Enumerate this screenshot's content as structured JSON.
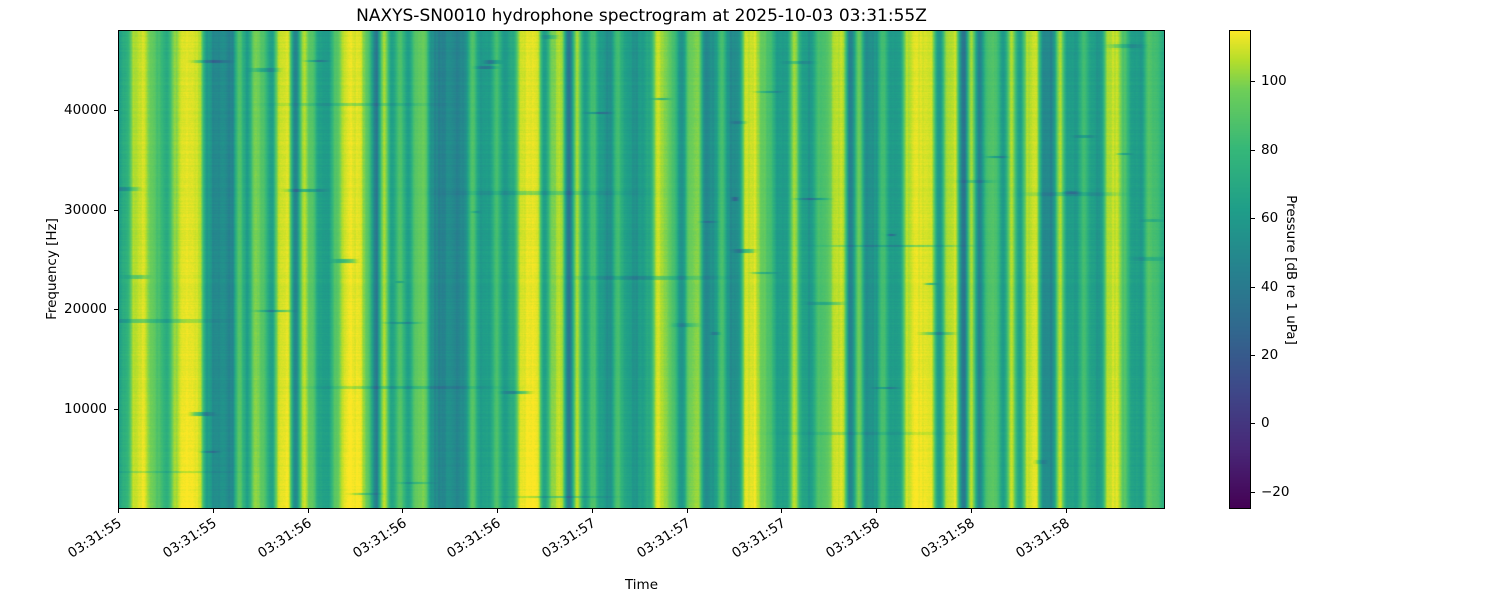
{
  "chart_data": {
    "type": "heatmap",
    "title": "NAXYS-SN0010 hydrophone spectrogram at 2025-10-03 03:31:55Z",
    "xlabel": "Time",
    "ylabel": "Frequency [Hz]",
    "colorbar_label": "Pressure [dB re 1 uPa]",
    "colormap": "viridis",
    "grid": false,
    "legend_position": "colorbar-right",
    "value_range_db": [
      -25,
      115
    ],
    "freq_range_hz": [
      0,
      48000
    ],
    "freq_ticks_hz": [
      10000,
      20000,
      30000,
      40000
    ],
    "freq_tick_labels": [
      "10000",
      "20000",
      "30000",
      "40000"
    ],
    "time_tick_labels": [
      "03:31:55",
      "03:31:55",
      "03:31:56",
      "03:31:56",
      "03:31:56",
      "03:31:57",
      "03:31:57",
      "03:31:57",
      "03:31:58",
      "03:31:58",
      "03:31:58"
    ],
    "colorbar_ticks_db": [
      100,
      80,
      60,
      40,
      20,
      0,
      -20
    ],
    "colorbar_tick_labels": [
      "100",
      "80",
      "60",
      "40",
      "20",
      "0",
      "−20"
    ],
    "column_levels_db": [
      62,
      75,
      105,
      110,
      95,
      85,
      70,
      100,
      112,
      112,
      108,
      60,
      50,
      52,
      45,
      88,
      62,
      100,
      88,
      62,
      108,
      110,
      48,
      105,
      90,
      65,
      60,
      88,
      108,
      112,
      110,
      90,
      40,
      105,
      65,
      88,
      62,
      92,
      95,
      52,
      42,
      50,
      46,
      52,
      88,
      58,
      62,
      85,
      60,
      70,
      108,
      112,
      110,
      62,
      100,
      105,
      38,
      105,
      62,
      85,
      60,
      52,
      85,
      65,
      55,
      60,
      70,
      108,
      100,
      85,
      52,
      95,
      100,
      50,
      55,
      85,
      52,
      55,
      108,
      110,
      95,
      85,
      60,
      62,
      105,
      65,
      58,
      85,
      88,
      105,
      108,
      42,
      95,
      52,
      55,
      85,
      60,
      62,
      105,
      112,
      110,
      108,
      58,
      105,
      108,
      35,
      105,
      45,
      85,
      88,
      60,
      105,
      62,
      105,
      108,
      52,
      48,
      105,
      62,
      60,
      85,
      62,
      58,
      105,
      108,
      88,
      62,
      58,
      88,
      85,
      70
    ],
    "colormap_stops": [
      {
        "t": 0.0,
        "color": "#440154"
      },
      {
        "t": 0.125,
        "color": "#482878"
      },
      {
        "t": 0.25,
        "color": "#3e4989"
      },
      {
        "t": 0.375,
        "color": "#31688e"
      },
      {
        "t": 0.5,
        "color": "#26828e"
      },
      {
        "t": 0.625,
        "color": "#1f9e89"
      },
      {
        "t": 0.75,
        "color": "#35b779"
      },
      {
        "t": 0.875,
        "color": "#6ece58"
      },
      {
        "t": 0.9375,
        "color": "#b5de2b"
      },
      {
        "t": 1.0,
        "color": "#fde725"
      }
    ]
  }
}
